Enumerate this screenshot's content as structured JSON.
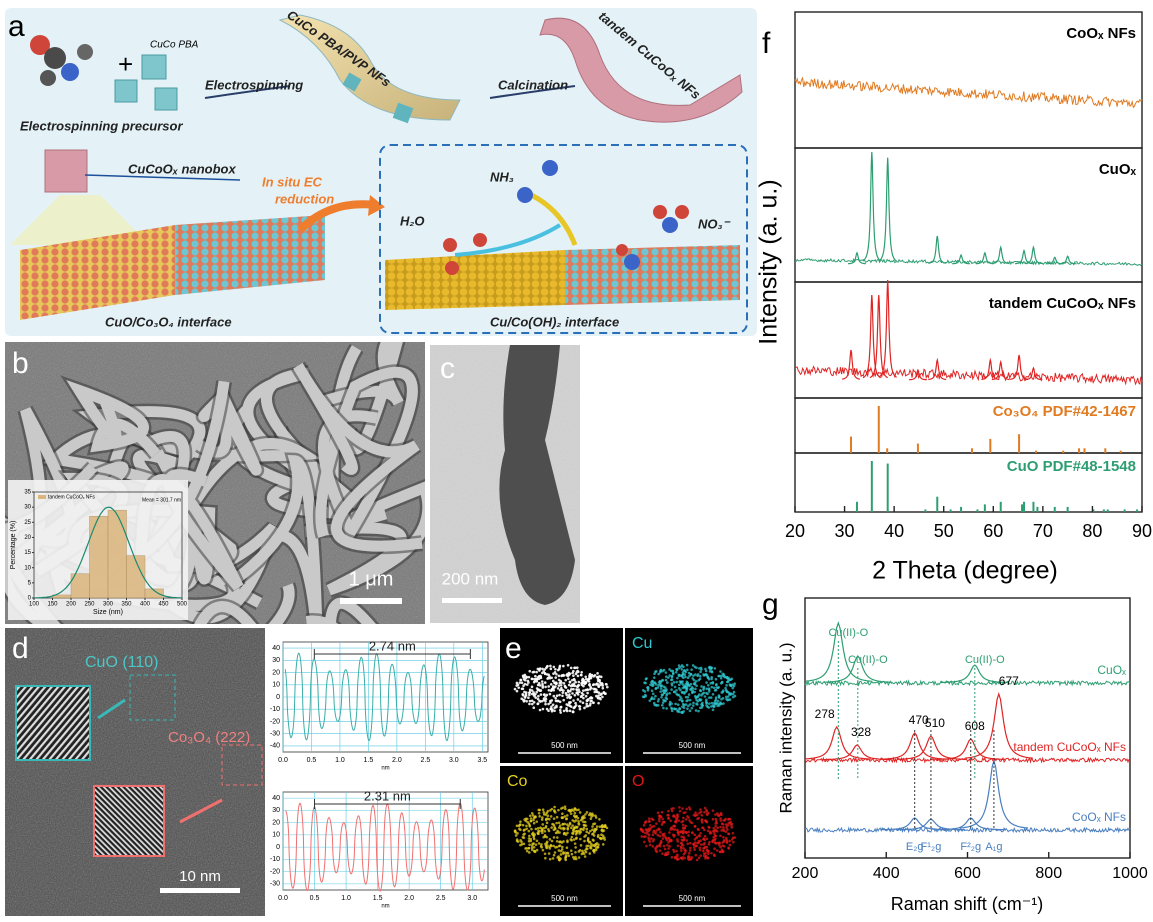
{
  "figure": {
    "panel_labels": [
      "a",
      "b",
      "c",
      "d",
      "e"
    ],
    "a": {
      "cuco_pba": "CuCo PBA",
      "precursor": "Electrospinning precursor",
      "step1": "Electrospinning",
      "fiber1": "CuCo PBA/PVP NFs",
      "step2": "Calcination",
      "fiber2": "tandem CuCoOₓ NFs",
      "nanobox": "CuCoOₓ nanobox",
      "reduction": [
        "In situ EC",
        "reduction"
      ],
      "interface1": "CuO/Co₃O₄ interface",
      "h2o": "H₂O",
      "nh3": "NH₃",
      "no3": "NO₃⁻",
      "interface2": "Cu/Co(OH)₂ interface"
    },
    "b": {
      "scale_bar": "1 μm"
    },
    "c": {
      "scale_bar": "200 nm"
    },
    "d": {
      "cuo": "CuO (110)",
      "co3o4": "Co₃O₄ (222)",
      "scale_bar": "10 nm"
    },
    "e": {
      "maps": [
        "Cu",
        "Co",
        "O"
      ],
      "scale_bar": "500 nm"
    }
  },
  "chart_data": [
    {
      "type": "histogram",
      "legend": "tandem CuCoOₓ NFs",
      "annotation": "Mean = 301.7 nm",
      "xlabel": "Size (nm)",
      "ylabel": "Percentage (%)",
      "bins": [
        150,
        200,
        250,
        300,
        350,
        400,
        450
      ],
      "values": [
        1,
        8,
        27,
        29,
        14,
        3
      ],
      "color": "#dcb57c",
      "xlim": [
        100,
        500
      ],
      "xticks": [
        100,
        150,
        200,
        250,
        300,
        350,
        400,
        450,
        500
      ],
      "ylim": [
        0,
        35
      ],
      "yticks": [
        0,
        5,
        10,
        15,
        20,
        25,
        30,
        35
      ]
    },
    {
      "type": "profile",
      "xlabel": "nm",
      "spacing_label": "2.74 nm",
      "span": [
        0.55,
        3.29
      ],
      "color": "#3aaea8",
      "xlim": [
        0,
        3.6
      ],
      "xticks": [
        {
          "value": 0,
          "label": "0.0"
        },
        0.5,
        {
          "value": 1,
          "label": "1.0"
        },
        1.5,
        {
          "value": 2,
          "label": "2.0"
        },
        2.5,
        {
          "value": 3,
          "label": "3.0"
        },
        3.5
      ],
      "ylim": [
        -45,
        45
      ],
      "yticks": [
        -40,
        -30,
        -20,
        -10,
        0,
        10,
        20,
        30,
        40
      ]
    },
    {
      "type": "profile",
      "xlabel": "nm",
      "spacing_label": "2.31 nm",
      "span": [
        0.5,
        2.81
      ],
      "color": "#f07070",
      "xlim": [
        0,
        3.25
      ],
      "xticks": [
        {
          "value": 0,
          "label": "0.0"
        },
        0.5,
        {
          "value": 1,
          "label": "1.0"
        },
        1.5,
        {
          "value": 2,
          "label": "2.0"
        },
        2.5,
        {
          "value": 3,
          "label": "3.0"
        }
      ],
      "ylim": [
        -35,
        45
      ],
      "yticks": [
        -30,
        -20,
        -10,
        0,
        10,
        20,
        30,
        40
      ]
    },
    {
      "type": "xrd",
      "label": "f",
      "xlabel": "2 Theta (degree)",
      "ylabel": "Intensity (a. u.)",
      "xlim": [
        20,
        90
      ],
      "xticks": [
        20,
        30,
        40,
        50,
        60,
        70,
        80,
        90
      ],
      "series": [
        {
          "name": "CoOₓ NFs",
          "color": "#e07b22",
          "x": [],
          "values": []
        },
        {
          "name": "CuOₓ",
          "color": "#2e9e72",
          "x": [
            32.5,
            35.5,
            38.7,
            48.7,
            53.5,
            58.3,
            61.5,
            66.2,
            68.1,
            72.4,
            75.0
          ],
          "values": [
            0.1,
            1.0,
            0.95,
            0.25,
            0.08,
            0.1,
            0.15,
            0.12,
            0.15,
            0.06,
            0.07
          ]
        },
        {
          "name": "tandem CuCoOₓ NFs",
          "color": "#e02424",
          "x": [
            31.3,
            35.5,
            36.9,
            38.7,
            44.8,
            48.7,
            59.4,
            61.5,
            65.2,
            68.1
          ],
          "values": [
            0.3,
            0.85,
            0.85,
            1.0,
            0.1,
            0.2,
            0.2,
            0.18,
            0.25,
            0.12
          ]
        }
      ],
      "references": [
        {
          "name": "Co₃O₄ PDF#42-1467",
          "color": "#e07b22",
          "x": [
            31.3,
            36.9,
            38.6,
            44.8,
            55.7,
            59.4,
            65.2,
            68.6,
            74.1,
            77.3,
            78.4,
            82.6,
            85.7
          ],
          "values": [
            0.35,
            1.0,
            0.1,
            0.2,
            0.1,
            0.3,
            0.4,
            0.05,
            0.05,
            0.1,
            0.1,
            0.1,
            0.05
          ]
        },
        {
          "name": "CuO PDF#48-1548",
          "color": "#2e9e72",
          "x": [
            32.5,
            35.5,
            38.7,
            46.3,
            48.7,
            51.4,
            53.5,
            56.8,
            58.3,
            61.5,
            65.8,
            66.2,
            68.1,
            68.9,
            72.4,
            75.0,
            80.2,
            82.3,
            83.1,
            86.5,
            89.0
          ],
          "values": [
            0.2,
            1.0,
            0.95,
            0.05,
            0.3,
            0.05,
            0.1,
            0.05,
            0.15,
            0.2,
            0.15,
            0.2,
            0.2,
            0.1,
            0.1,
            0.1,
            0.05,
            0.05,
            0.05,
            0.05,
            0.05
          ]
        }
      ]
    },
    {
      "type": "raman",
      "label": "g",
      "xlabel": "Raman shift (cm⁻¹)",
      "ylabel": "Raman intensity (a. u.)",
      "xlim": [
        200,
        1000
      ],
      "xticks": [
        200,
        400,
        600,
        800,
        1000
      ],
      "series": [
        {
          "name": "CuOₓ",
          "color": "#2e9e72",
          "x": [
            282,
            330,
            618
          ],
          "values": [
            1.0,
            0.45,
            0.3
          ]
        },
        {
          "name": "tandem CuCoOₓ NFs",
          "color": "#e02424",
          "x": [
            278,
            328,
            470,
            510,
            608,
            677
          ],
          "values": [
            0.55,
            0.25,
            0.45,
            0.4,
            0.35,
            1.1
          ]
        },
        {
          "name": "CoOₓ NFs",
          "color": "#4a7fc0",
          "x": [
            470,
            510,
            608,
            665
          ],
          "values": [
            0.2,
            0.18,
            0.2,
            1.15
          ]
        }
      ],
      "band_labels": [
        "Cu(II)-O",
        "Cu(II)-O",
        "Cu(II)-O"
      ],
      "mode_labels": [
        "E₂g",
        "F¹₂g",
        "F²₂g",
        "A₁g"
      ]
    }
  ]
}
